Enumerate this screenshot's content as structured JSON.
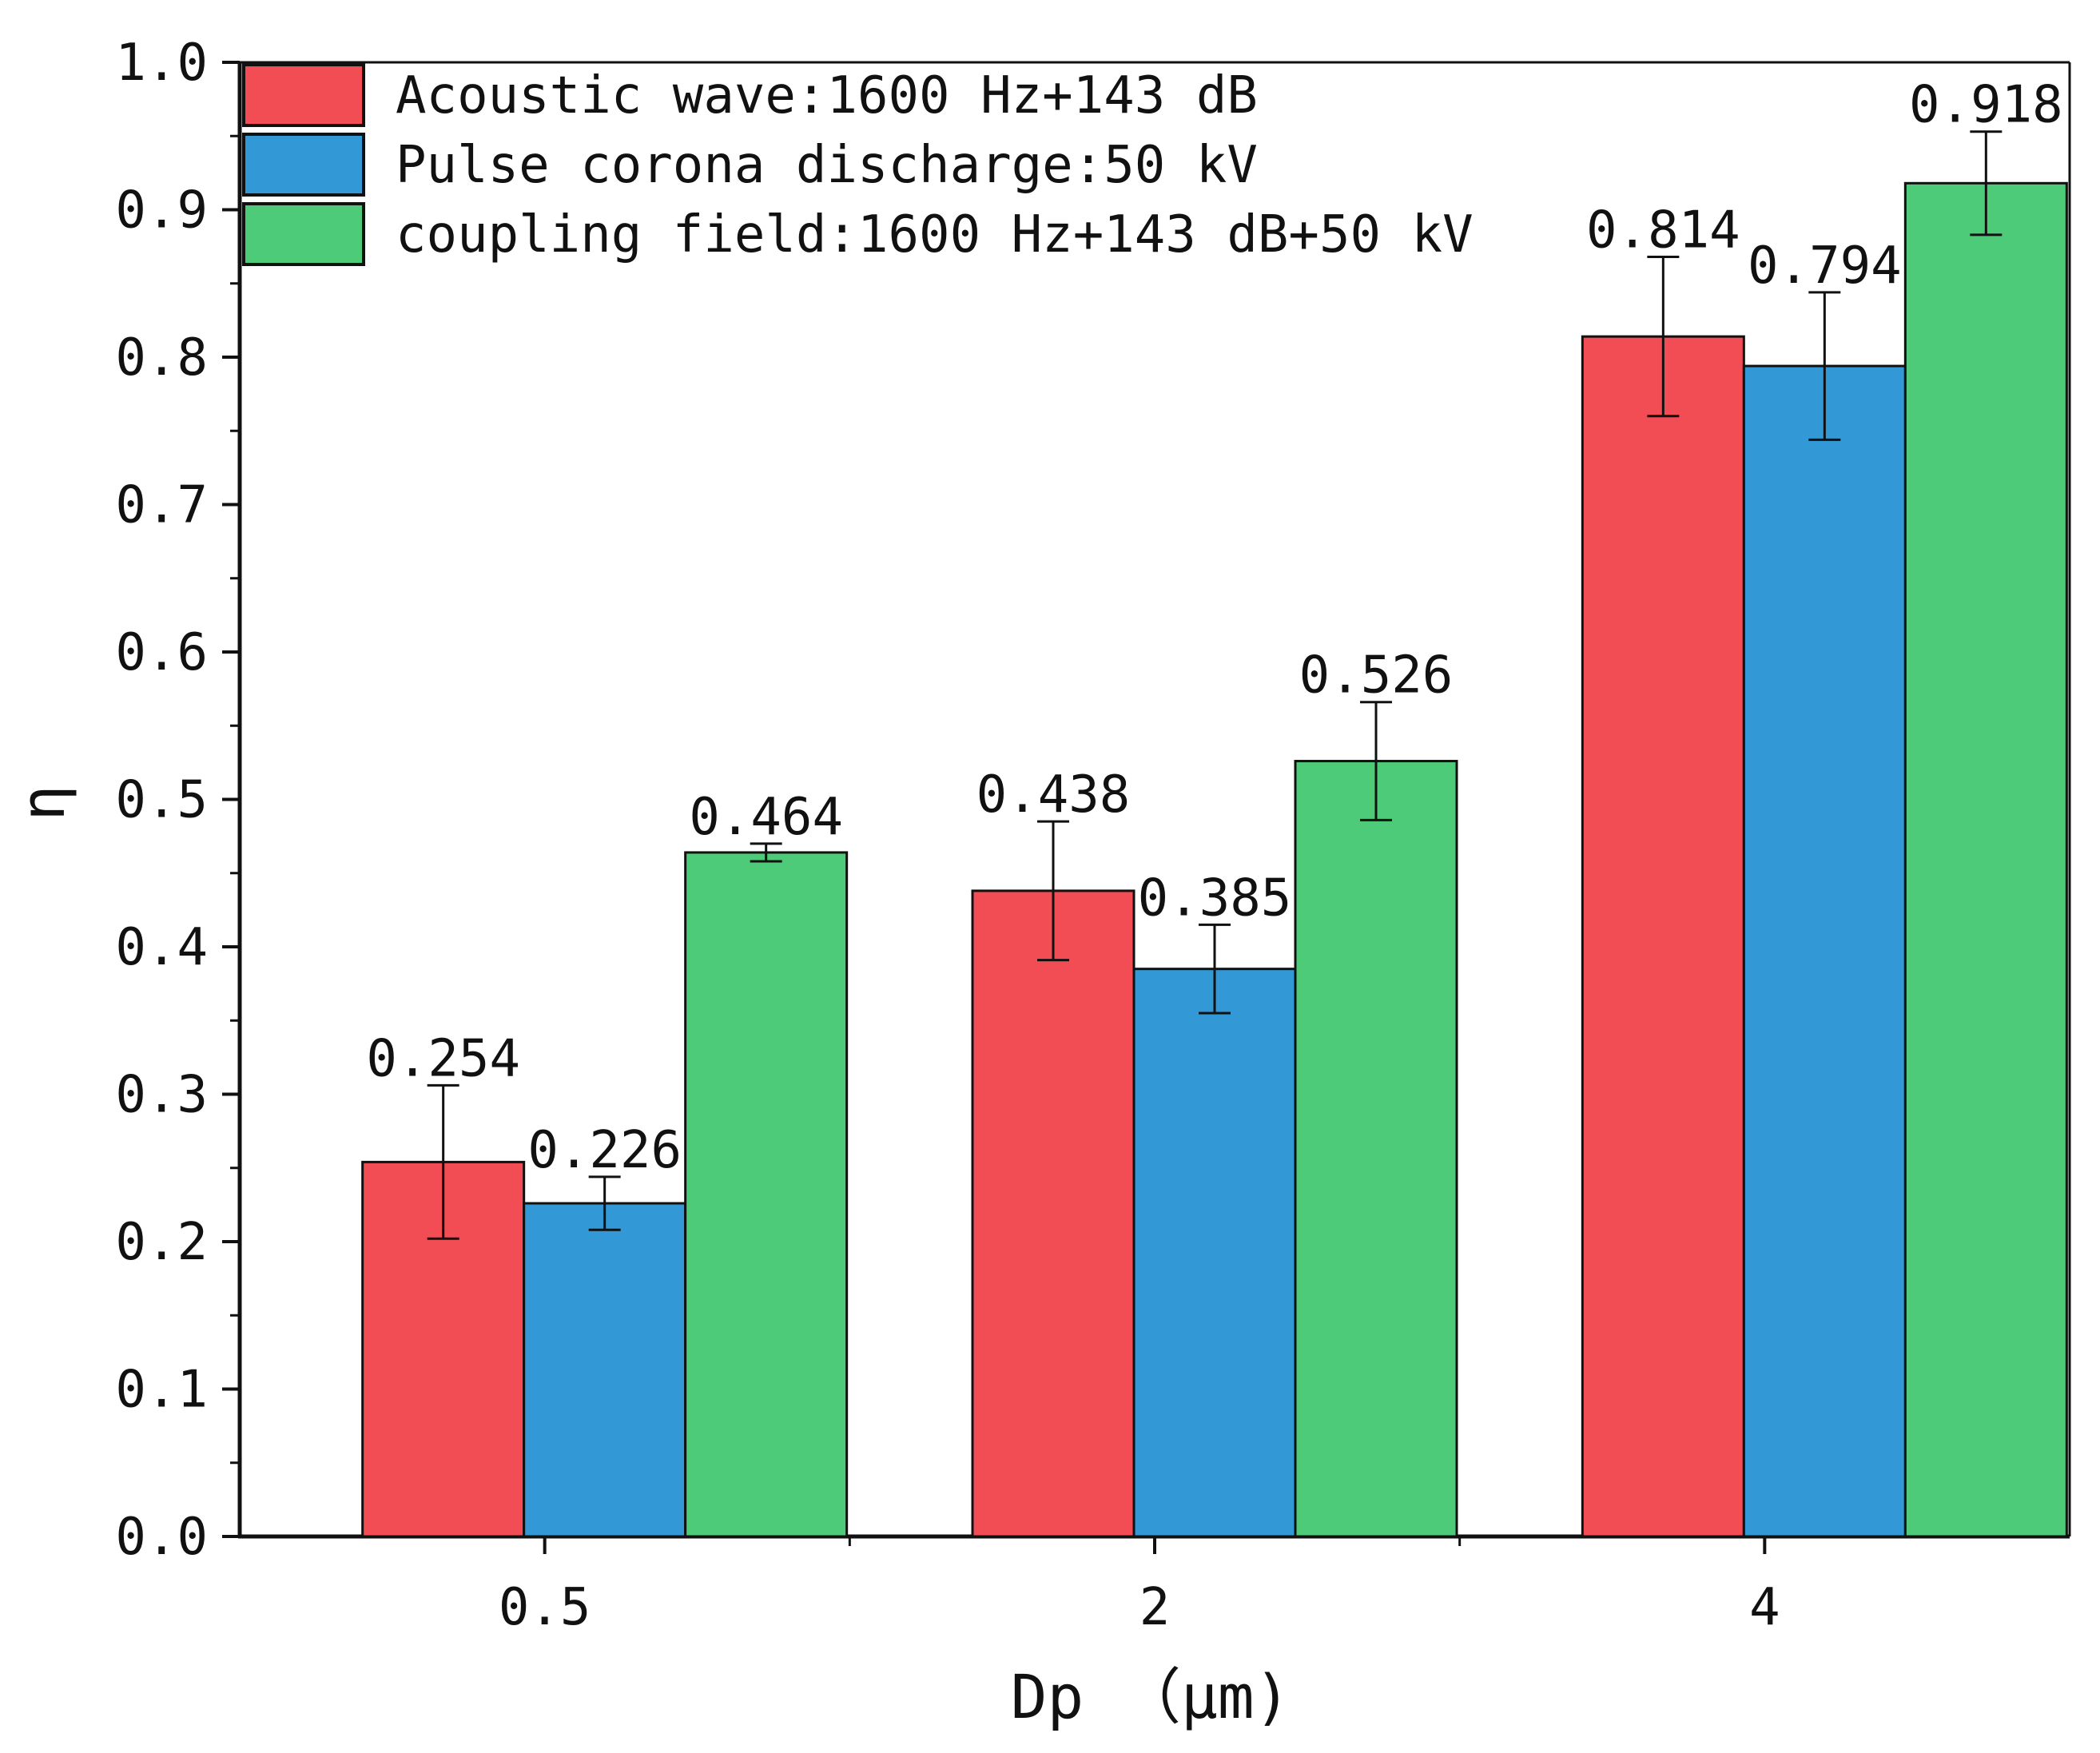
{
  "chart_data": {
    "type": "bar",
    "title": "",
    "xlabel": "Dp （μm)",
    "ylabel": "η",
    "categories": [
      "0.5",
      "2",
      "4"
    ],
    "ylim": [
      0.0,
      1.0
    ],
    "yticks": [
      "0.0",
      "0.1",
      "0.2",
      "0.3",
      "0.4",
      "0.5",
      "0.6",
      "0.7",
      "0.8",
      "0.9",
      "1.0"
    ],
    "legend_position": "top-left",
    "series": [
      {
        "name": "Acoustic wave:1600 Hz+143 dB",
        "color": "#f24d55",
        "values": [
          0.254,
          0.438,
          0.814
        ],
        "errors": [
          0.052,
          0.047,
          0.054
        ],
        "labels": [
          "0.254",
          "0.438",
          "0.814"
        ]
      },
      {
        "name": "Pulse corona discharge:50 kV",
        "color": "#3399d6",
        "values": [
          0.226,
          0.385,
          0.794
        ],
        "errors": [
          0.018,
          0.03,
          0.05
        ],
        "labels": [
          "0.226",
          "0.385",
          "0.794"
        ]
      },
      {
        "name": "coupling field:1600 Hz+143 dB+50 kV",
        "color": "#4ecb78",
        "values": [
          0.464,
          0.526,
          0.918
        ],
        "errors": [
          0.006,
          0.04,
          0.035
        ],
        "labels": [
          "0.464",
          "0.526",
          "0.918"
        ]
      }
    ]
  }
}
